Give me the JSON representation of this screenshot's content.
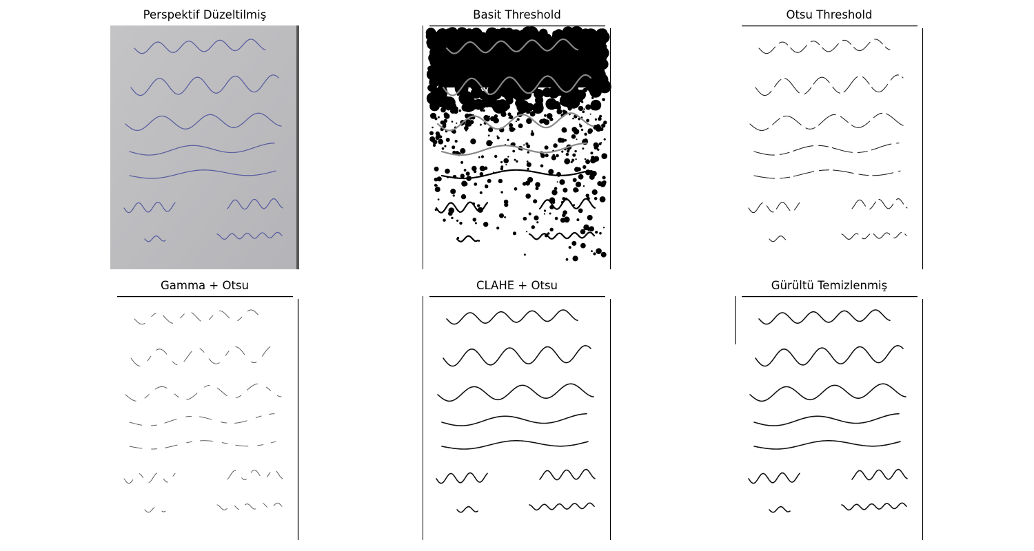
{
  "figure": {
    "panels": [
      {
        "id": "perspective",
        "title": "Perspektif Düzeltilmiş",
        "style": "gray-photo",
        "ink": "#5a5f9e"
      },
      {
        "id": "basic",
        "title": "Basit Threshold",
        "style": "noisy",
        "ink": "#000000"
      },
      {
        "id": "otsu",
        "title": "Otsu Threshold",
        "style": "faint",
        "ink": "#222222"
      },
      {
        "id": "gamma",
        "title": "Gamma + Otsu",
        "style": "fainter",
        "ink": "#333333"
      },
      {
        "id": "clahe",
        "title": "CLAHE + Otsu",
        "style": "clean",
        "ink": "#111111"
      },
      {
        "id": "denoised",
        "title": "Gürültü Temizlenmiş",
        "style": "clean",
        "ink": "#111111"
      }
    ]
  }
}
